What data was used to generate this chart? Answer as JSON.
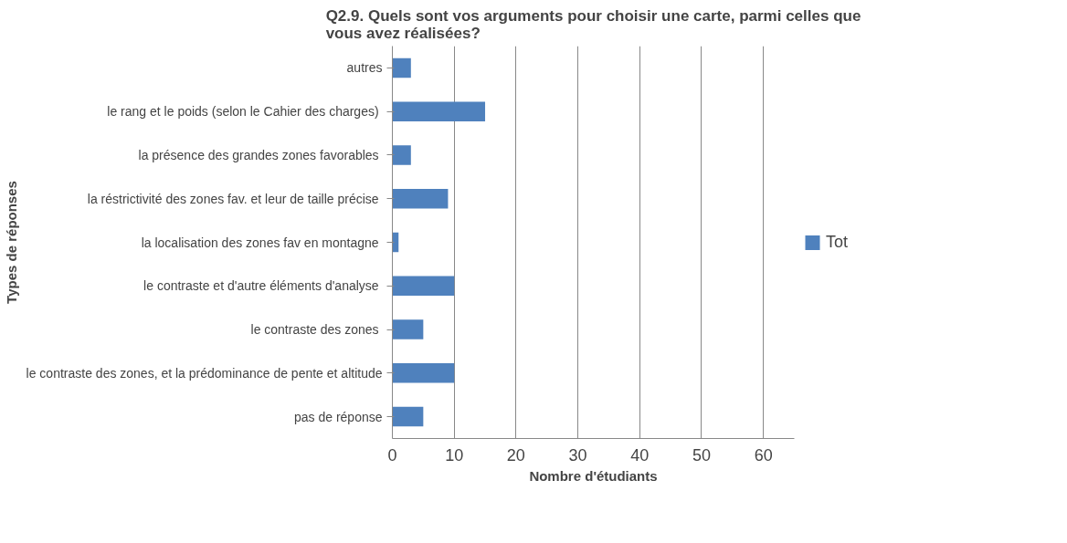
{
  "chart_data": {
    "type": "bar",
    "orientation": "horizontal",
    "title": "Q2.9. Quels sont vos arguments pour choisir une carte, parmi celles que vous avez réalisées?",
    "xlabel": "Nombre d'étudiants",
    "ylabel": "Types de réponses",
    "categories": [
      "autres",
      "le rang et le poids  (selon le Cahier des charges)",
      "la présence  des grandes zones favorables",
      "la réstrictivité  des zones fav. et leur de taille précise",
      "la  localisation des zones fav en montagne",
      "le contraste et  d'autre éléments d'analyse",
      "le contraste des zones ",
      "le contraste des zones, et la prédominance de pente et altitude",
      "pas de réponse"
    ],
    "series": [
      {
        "name": "Tot",
        "color": "#4f81bd",
        "values": [
          3,
          15,
          3,
          9,
          1,
          10,
          5,
          10,
          5
        ]
      }
    ],
    "xlim": [
      0,
      65
    ],
    "xticks": [
      0,
      10,
      20,
      30,
      40,
      50,
      60
    ],
    "grid": "x",
    "legend": "right"
  }
}
